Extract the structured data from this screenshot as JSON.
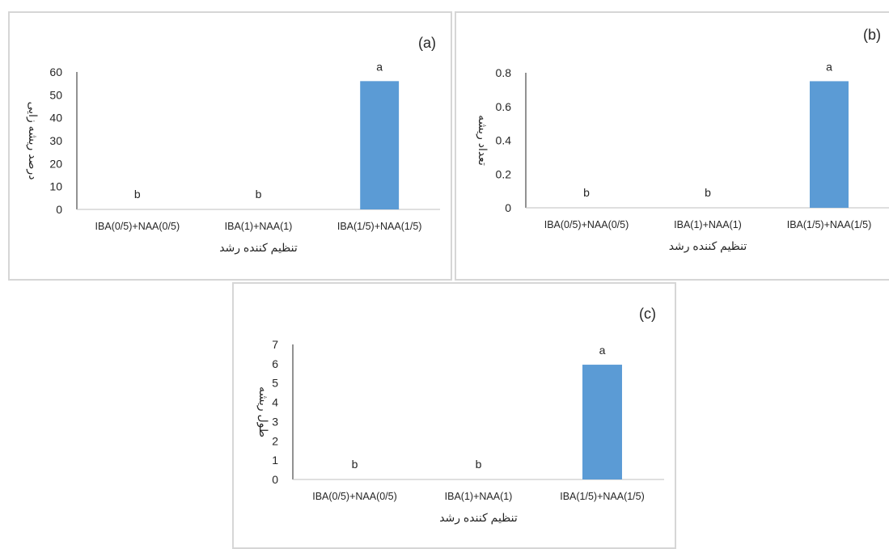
{
  "chart_data": [
    {
      "panel_label": "(a)",
      "type": "bar",
      "categories": [
        "IBA(0/5)+NAA(0/5)",
        "IBA(1)+NAA(1)",
        "IBA(1/5)+NAA(1/5)"
      ],
      "values": [
        0,
        0,
        56
      ],
      "letters": [
        "b",
        "b",
        "a"
      ],
      "ylabel": "درصد ریشه زایی",
      "xlabel": "تنظیم کننده رشد",
      "yticks": [
        "0",
        "10",
        "20",
        "30",
        "40",
        "50",
        "60"
      ],
      "ylim": [
        0,
        60
      ],
      "grid": false,
      "bar_color": "#5b9bd5"
    },
    {
      "panel_label": "(b)",
      "type": "bar",
      "categories": [
        "IBA(0/5)+NAA(0/5)",
        "IBA(1)+NAA(1)",
        "IBA(1/5)+NAA(1/5)"
      ],
      "values": [
        0,
        0,
        0.75
      ],
      "letters": [
        "b",
        "b",
        "a"
      ],
      "ylabel": "تعداد ریشه",
      "xlabel": "تنظیم کننده رشد",
      "yticks": [
        "0",
        "0.2",
        "0.4",
        "0.6",
        "0.8"
      ],
      "ylim": [
        0,
        0.8
      ],
      "grid": false,
      "bar_color": "#5b9bd5"
    },
    {
      "panel_label": "(c)",
      "type": "bar",
      "categories": [
        "IBA(0/5)+NAA(0/5)",
        "IBA(1)+NAA(1)",
        "IBA(1/5)+NAA(1/5)"
      ],
      "values": [
        0,
        0,
        5.95
      ],
      "letters": [
        "b",
        "b",
        "a"
      ],
      "ylabel": "طول ریشه",
      "xlabel": "تنظیم کننده رشد",
      "yticks": [
        "0",
        "1",
        "2",
        "3",
        "4",
        "5",
        "6",
        "7"
      ],
      "ylim": [
        0,
        7
      ],
      "grid": false,
      "bar_color": "#5b9bd5"
    }
  ]
}
